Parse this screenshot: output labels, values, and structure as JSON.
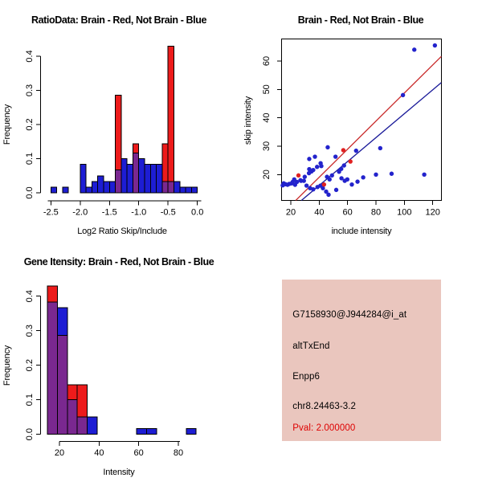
{
  "window_title": "R Graphics Device",
  "colors": {
    "background": "#FFFFFF",
    "hist_red": "#ED1B1B",
    "hist_blue": "#1D1DD4",
    "overlap_purple": "#7A2890",
    "bar_border": "#000000",
    "point_blue": "#2323CC",
    "point_red": "#E02020",
    "line_red": "#C92B2B",
    "line_blue": "#1A1A99",
    "axis_color": "#000000",
    "info_bg": "#EAC6BE",
    "pval_red": "#DE0000",
    "text_color": "#000000"
  },
  "chart_data": [
    {
      "id": "ratio_hist",
      "type": "bar",
      "subtype": "overlaid-histogram",
      "title": "RatioData: Brain - Red, Not Brain - Blue",
      "xlabel": "Log2 Ratio Skip/Include",
      "ylabel": "Frequency",
      "xlim": [
        -2.62,
        0.07
      ],
      "ylim": [
        0,
        0.445
      ],
      "bin_width": 0.1,
      "xticks": [
        {
          "v": -2.5,
          "label": "-2.5"
        },
        {
          "v": -2.0,
          "label": "-2.0"
        },
        {
          "v": -1.5,
          "label": "-1.5"
        },
        {
          "v": -1.0,
          "label": "-1.0"
        },
        {
          "v": -0.5,
          "label": "-0.5"
        },
        {
          "v": 0.0,
          "label": "0.0"
        }
      ],
      "yticks": [
        {
          "v": 0.0,
          "label": "0.0"
        },
        {
          "v": 0.1,
          "label": "0.1"
        },
        {
          "v": 0.2,
          "label": "0.2"
        },
        {
          "v": 0.3,
          "label": "0.3"
        },
        {
          "v": 0.4,
          "label": "0.4"
        }
      ],
      "series": [
        {
          "name": "Not Brain",
          "color": "blue",
          "bins": [
            [
              -2.5,
              0.017
            ],
            [
              -2.3,
              0.017
            ],
            [
              -2.0,
              0.083
            ],
            [
              -1.9,
              0.017
            ],
            [
              -1.8,
              0.033
            ],
            [
              -1.7,
              0.05
            ],
            [
              -1.6,
              0.033
            ],
            [
              -1.5,
              0.033
            ],
            [
              -1.4,
              0.067
            ],
            [
              -1.3,
              0.1
            ],
            [
              -1.2,
              0.083
            ],
            [
              -1.1,
              0.117
            ],
            [
              -1.0,
              0.1
            ],
            [
              -0.9,
              0.083
            ],
            [
              -0.8,
              0.083
            ],
            [
              -0.7,
              0.083
            ],
            [
              -0.6,
              0.033
            ],
            [
              -0.5,
              0.033
            ],
            [
              -0.4,
              0.033
            ],
            [
              -0.3,
              0.017
            ],
            [
              -0.2,
              0.017
            ],
            [
              -0.1,
              0.017
            ]
          ]
        },
        {
          "name": "Brain",
          "color": "red",
          "bins": [
            [
              -1.4,
              0.286
            ],
            [
              -1.1,
              0.143
            ],
            [
              -0.6,
              0.143
            ],
            [
              -0.5,
              0.429
            ]
          ]
        }
      ]
    },
    {
      "id": "scatter",
      "type": "scatter",
      "title": "Brain - Red, Not Brain - Blue",
      "xlabel": "include intensity",
      "ylabel": "skip intensity",
      "xlim": [
        13.5,
        126
      ],
      "ylim": [
        10.9,
        68
      ],
      "xticks": [
        {
          "v": 20,
          "label": "20"
        },
        {
          "v": 40,
          "label": "40"
        },
        {
          "v": 60,
          "label": "60"
        },
        {
          "v": 80,
          "label": "80"
        },
        {
          "v": 100,
          "label": "100"
        },
        {
          "v": 120,
          "label": "120"
        }
      ],
      "yticks": [
        {
          "v": 20,
          "label": "20"
        },
        {
          "v": 30,
          "label": "30"
        },
        {
          "v": 40,
          "label": "40"
        },
        {
          "v": 50,
          "label": "50"
        },
        {
          "v": 60,
          "label": "60"
        }
      ],
      "series": [
        {
          "name": "Not Brain",
          "color": "blue",
          "points": [
            [
              121.5,
              65.5
            ],
            [
              107,
              64
            ],
            [
              99,
              48
            ],
            [
              83,
              29.3
            ],
            [
              66,
              28.4
            ],
            [
              46,
              29.6
            ],
            [
              51.5,
              26.3
            ],
            [
              37,
              26.3
            ],
            [
              33,
              25.5
            ],
            [
              57.5,
              23.2
            ],
            [
              55.5,
              22
            ],
            [
              54,
              21
            ],
            [
              41,
              24
            ],
            [
              41.5,
              23
            ],
            [
              38.5,
              22.7
            ],
            [
              35.8,
              21.6
            ],
            [
              34.5,
              21.1
            ],
            [
              33,
              21.9
            ],
            [
              32.8,
              20.5
            ],
            [
              80,
              20
            ],
            [
              91,
              20.3
            ],
            [
              114,
              20
            ],
            [
              71,
              19
            ],
            [
              67,
              17.5
            ],
            [
              63,
              16.5
            ],
            [
              52,
              14.6
            ],
            [
              58,
              17.8
            ],
            [
              55.7,
              18.7
            ],
            [
              59.8,
              18.3
            ],
            [
              45.5,
              19.2
            ],
            [
              47.3,
              18.3
            ],
            [
              49,
              19.7
            ],
            [
              44.9,
              14
            ],
            [
              46.6,
              12.9
            ],
            [
              42.6,
              15.2
            ],
            [
              40.9,
              16.1
            ],
            [
              38.8,
              15.6
            ],
            [
              35.8,
              14.8
            ],
            [
              33.6,
              15.2
            ],
            [
              31.1,
              16.1
            ],
            [
              29.8,
              19.2
            ],
            [
              29.2,
              17.8
            ],
            [
              26.8,
              18
            ],
            [
              27.2,
              17.8
            ],
            [
              24.3,
              17.4
            ],
            [
              23,
              16.4
            ],
            [
              22.4,
              18.3
            ],
            [
              21.3,
              17.4
            ],
            [
              20.6,
              16.9
            ],
            [
              18.9,
              16.7
            ],
            [
              17.7,
              16.4
            ],
            [
              15,
              16.9
            ],
            [
              14.3,
              16.2
            ],
            [
              16.3,
              16.6
            ]
          ]
        },
        {
          "name": "Brain",
          "color": "red",
          "points": [
            [
              25.4,
              19.7
            ],
            [
              43.4,
              16.5
            ],
            [
              57,
              28.6
            ],
            [
              62,
              24.6
            ]
          ]
        }
      ],
      "lines": [
        {
          "name": "brain-fit-line",
          "color": "red",
          "x1": 23.5,
          "y1": 10.9,
          "x2": 126,
          "y2": 61.6
        },
        {
          "name": "not-brain-fit-line",
          "color": "blue",
          "x1": 27.5,
          "y1": 10.9,
          "x2": 126,
          "y2": 52.4
        }
      ]
    },
    {
      "id": "gene_hist",
      "type": "bar",
      "subtype": "overlaid-histogram",
      "title": "Gene Itensity: Brain - Red, Not Brain - Blue",
      "xlabel": "Intensity",
      "ylabel": "Frequency",
      "xlim": [
        13,
        91
      ],
      "ylim": [
        0,
        0.445
      ],
      "bin_width": 5,
      "xticks": [
        {
          "v": 20,
          "label": "20"
        },
        {
          "v": 40,
          "label": "40"
        },
        {
          "v": 60,
          "label": "60"
        },
        {
          "v": 80,
          "label": "80"
        }
      ],
      "yticks": [
        {
          "v": 0.0,
          "label": "0.0"
        },
        {
          "v": 0.1,
          "label": "0.1"
        },
        {
          "v": 0.2,
          "label": "0.2"
        },
        {
          "v": 0.3,
          "label": "0.3"
        },
        {
          "v": 0.4,
          "label": "0.4"
        }
      ],
      "series": [
        {
          "name": "Not Brain",
          "color": "blue",
          "bins": [
            [
              14,
              0.383
            ],
            [
              19,
              0.367
            ],
            [
              24,
              0.1
            ],
            [
              29,
              0.05
            ],
            [
              34,
              0.05
            ],
            [
              59,
              0.017
            ],
            [
              64,
              0.017
            ],
            [
              84,
              0.017
            ]
          ]
        },
        {
          "name": "Brain",
          "color": "red",
          "bins": [
            [
              14,
              0.429
            ],
            [
              19,
              0.286
            ],
            [
              24,
              0.143
            ],
            [
              29,
              0.143
            ]
          ]
        }
      ]
    }
  ],
  "info_panel": {
    "probe_id": "G7158930@J944284@i_at",
    "event": "altTxEnd",
    "gene": "Enpp6",
    "location": "chr8.24463-3.2",
    "pval": "Pval: 2.000000"
  }
}
